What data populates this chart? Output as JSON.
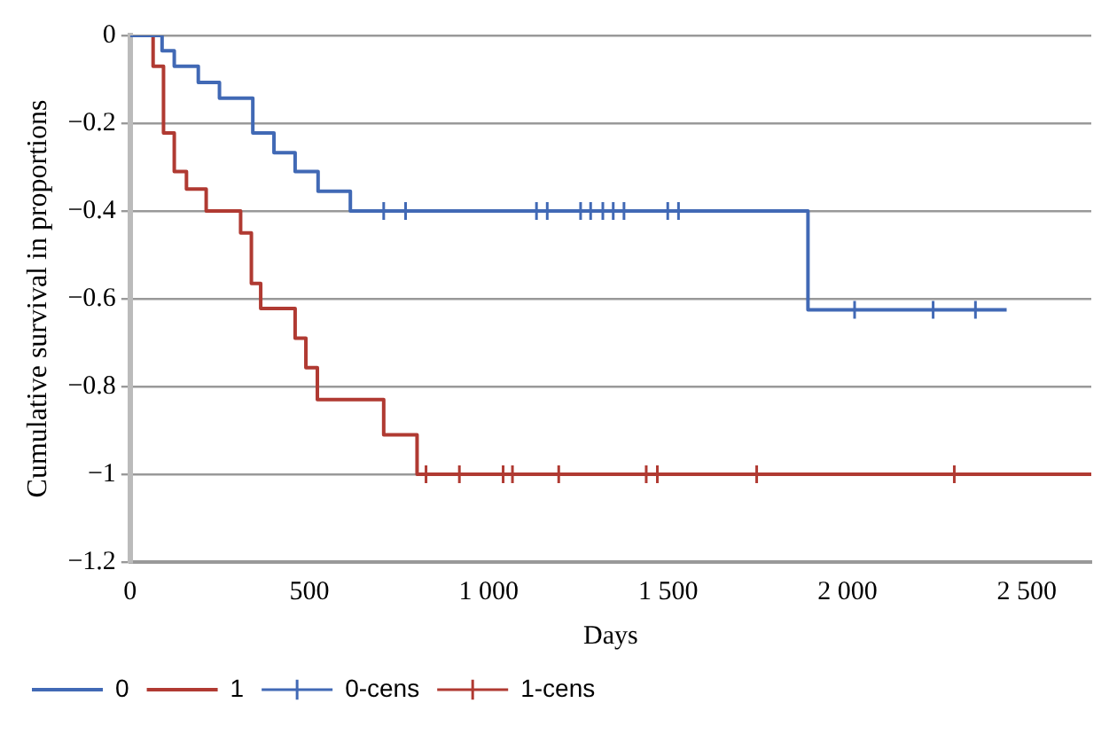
{
  "chart_data": {
    "type": "step",
    "xlabel": "Days",
    "ylabel": "Cumulative survival in proportions",
    "xlim": [
      0,
      2680
    ],
    "xticks": [
      0,
      {
        "value": 500,
        "label": "500"
      },
      {
        "value": 1000,
        "label": "1 000"
      },
      {
        "value": 1500,
        "label": "1 500"
      },
      {
        "value": 2000,
        "label": "2 000"
      },
      {
        "value": 2500,
        "label": "2 500"
      }
    ],
    "ylim": [
      -1.2,
      0
    ],
    "yticks": [
      {
        "value": -1.2,
        "label": "−1.2"
      },
      {
        "value": -1,
        "label": "−1"
      },
      {
        "value": -0.8,
        "label": "−0.8"
      },
      {
        "value": -0.6,
        "label": "−0.6"
      },
      {
        "value": -0.4,
        "label": "−0.4"
      },
      {
        "value": -0.2,
        "label": "−0.2"
      },
      0
    ],
    "grid": "y",
    "legend": "bottom left",
    "series": [
      {
        "name": "0",
        "type": "step",
        "marker": "none",
        "color": "#4169b5",
        "x": [
          0,
          89,
          123,
          190,
          249,
          342,
          401,
          460,
          524,
          614,
          1890,
          2444
        ],
        "values": [
          0,
          -0.035,
          -0.07,
          -0.107,
          -0.143,
          -0.222,
          -0.267,
          -0.31,
          -0.355,
          -0.4,
          -0.625,
          -0.625
        ]
      },
      {
        "name": "1",
        "type": "step",
        "marker": "none",
        "color": "#b03a32",
        "x": [
          0,
          64,
          93,
          123,
          157,
          212,
          308,
          338,
          364,
          460,
          490,
          522,
          707,
          800,
          2680
        ],
        "values": [
          0,
          -0.07,
          -0.222,
          -0.31,
          -0.35,
          -0.4,
          -0.45,
          -0.565,
          -0.622,
          -0.69,
          -0.757,
          -0.83,
          -0.91,
          -1,
          -1
        ]
      },
      {
        "name": "0-cens",
        "type": "scatter",
        "marker": "cross",
        "color": "#4169b5",
        "x": [
          707,
          768,
          1133,
          1163,
          1256,
          1284,
          1318,
          1347,
          1377,
          1499,
          1529,
          2020,
          2239,
          2357
        ],
        "values": [
          -0.4,
          -0.4,
          -0.4,
          -0.4,
          -0.4,
          -0.4,
          -0.4,
          -0.4,
          -0.4,
          -0.4,
          -0.4,
          -0.625,
          -0.625,
          -0.625
        ]
      },
      {
        "name": "1-cens",
        "type": "scatter",
        "marker": "cross",
        "color": "#b03a32",
        "x": [
          825,
          918,
          1040,
          1066,
          1195,
          1439,
          1470,
          1747,
          2298
        ],
        "values": [
          -1,
          -1,
          -1,
          -1,
          -1,
          -1,
          -1,
          -1,
          -1
        ]
      }
    ]
  }
}
